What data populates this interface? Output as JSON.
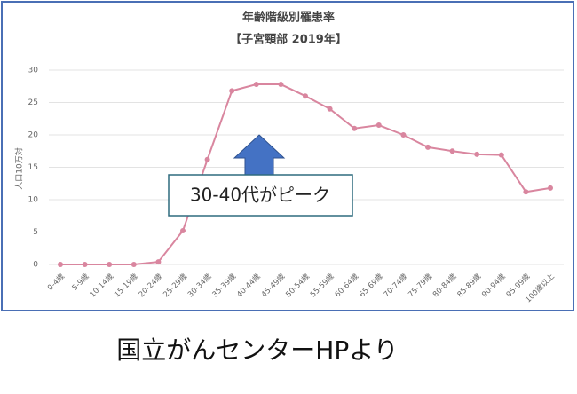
{
  "chart_data": {
    "type": "line",
    "title": "年齢階級別罹患率",
    "subtitle": "【子宮頸部 2019年】",
    "y_label": "人口10万対",
    "categories": [
      "0-4歳",
      "5-9歳",
      "10-14歳",
      "15-19歳",
      "20-24歳",
      "25-29歳",
      "30-34歳",
      "35-39歳",
      "40-44歳",
      "45-49歳",
      "50-54歳",
      "55-59歳",
      "60-64歳",
      "65-69歳",
      "70-74歳",
      "75-79歳",
      "80-84歳",
      "85-89歳",
      "90-94歳",
      "95-99歳",
      "100歳以上"
    ],
    "values": [
      0,
      0,
      0,
      0,
      0.4,
      5.2,
      16.2,
      26.8,
      27.8,
      27.8,
      26.0,
      24.0,
      21.0,
      21.5,
      20.0,
      18.1,
      17.5,
      17.0,
      16.9,
      11.2,
      11.8
    ],
    "color": "#d9869f",
    "ylim": [
      0,
      30
    ],
    "yticks": [
      0,
      5,
      10,
      15,
      20,
      25,
      30
    ],
    "grid": true,
    "annotation": "30-40代がピーク"
  },
  "caption": "国立がんセンターHPより"
}
